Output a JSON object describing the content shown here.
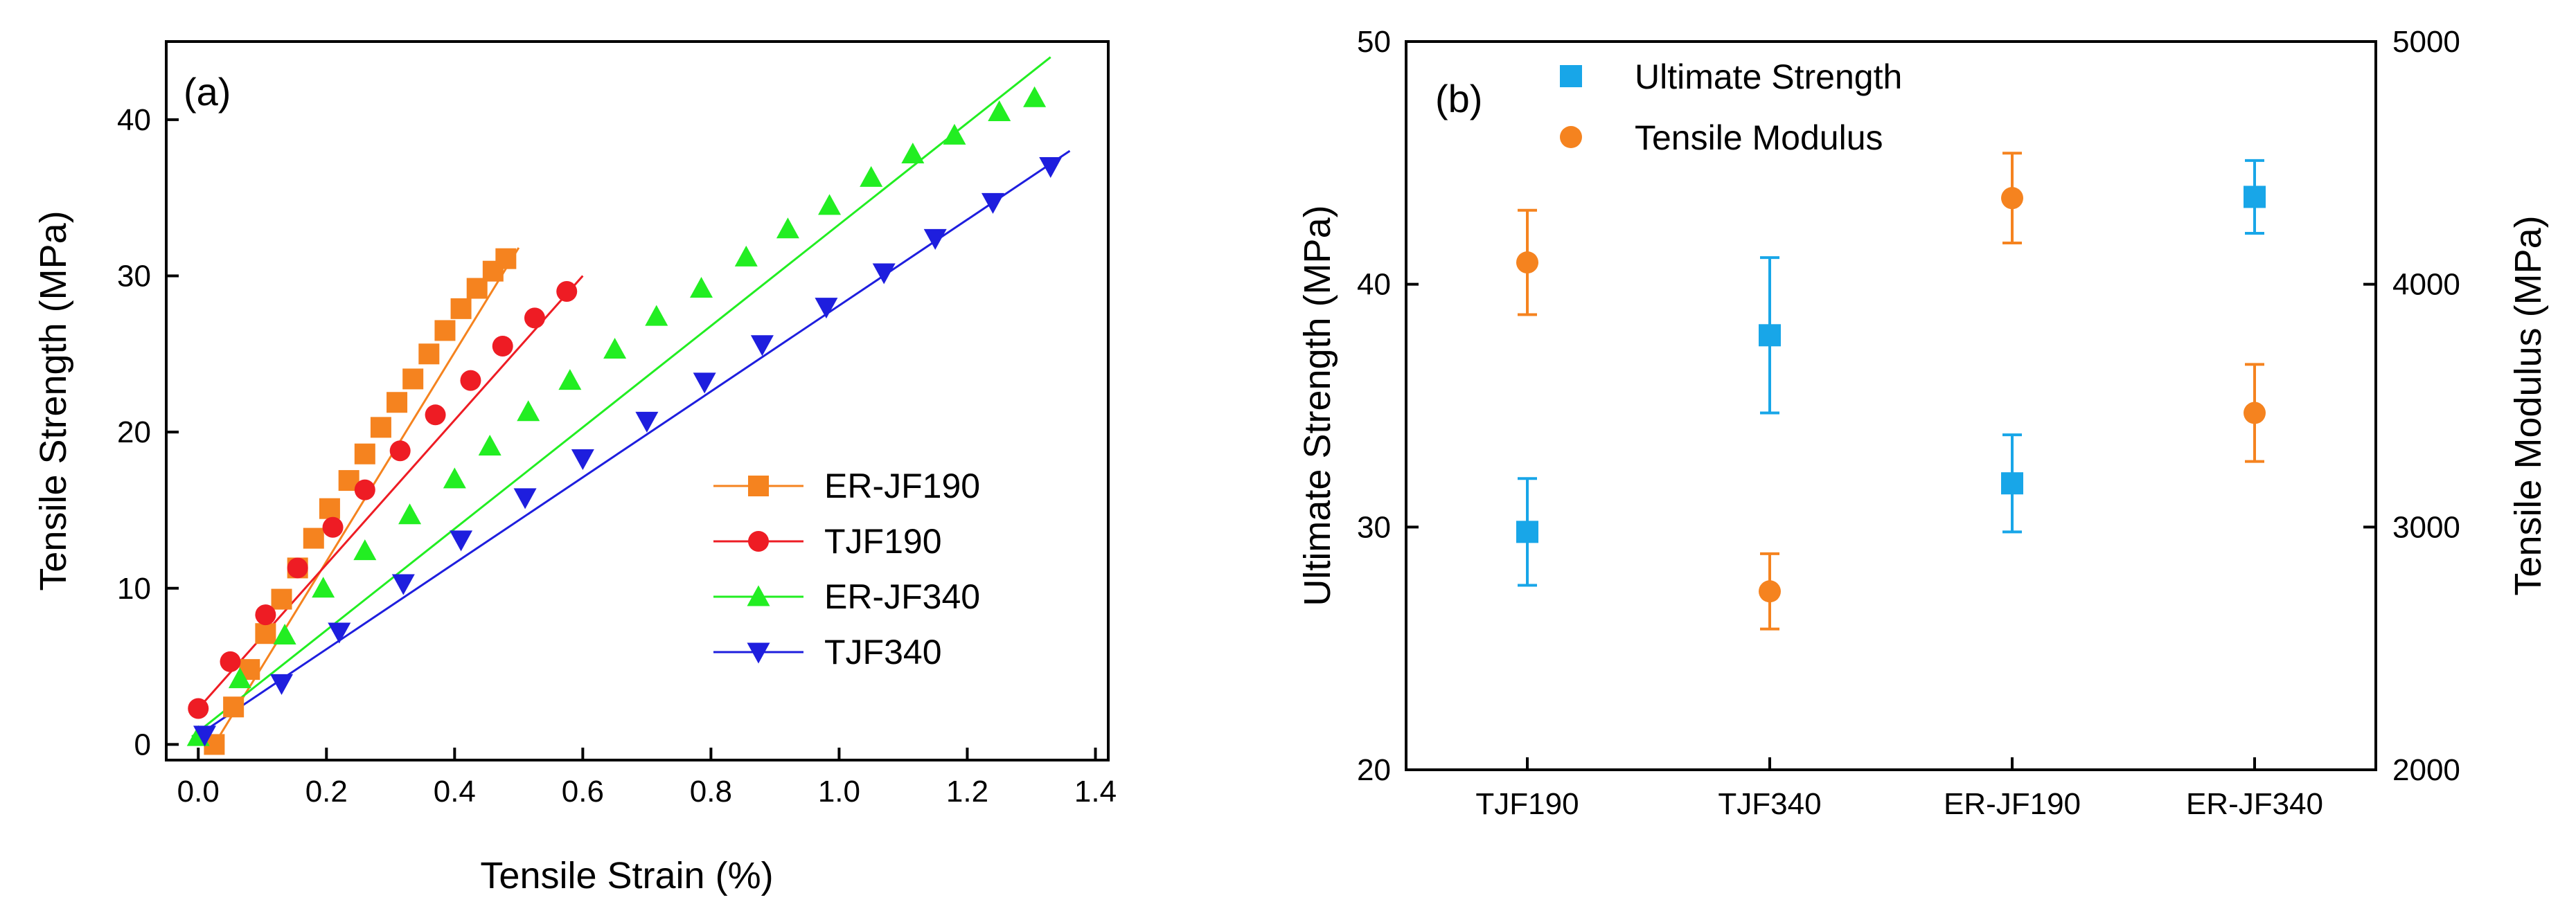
{
  "colors": {
    "orange": "#F5831F",
    "red": "#EE1C24",
    "green": "#22EE22",
    "blue": "#1E1EDE",
    "cyan": "#18A6E8",
    "axis": "#000000"
  },
  "chart_data": [
    {
      "id": "a",
      "type": "line",
      "panel_label": "(a)",
      "xlabel": "Tensile Strain (%)",
      "ylabel": "Tensile Strength (MPa)",
      "xlim": [
        -0.05,
        1.42
      ],
      "ylim": [
        -1,
        45
      ],
      "xticks": [
        0.0,
        0.2,
        0.4,
        0.6,
        0.8,
        1.0,
        1.2,
        1.4
      ],
      "xtick_labels": [
        "0.0",
        "0.2",
        "0.4",
        "0.6",
        "0.8",
        "1.0",
        "1.2",
        "1.4"
      ],
      "yticks": [
        0,
        10,
        20,
        30,
        40
      ],
      "ytick_labels": [
        "0",
        "10",
        "20",
        "30",
        "40"
      ],
      "grid": false,
      "legend_position": "lower-right",
      "series": [
        {
          "name": "ER-JF190",
          "color": "#F5831F",
          "marker": "square",
          "line": [
            [
              0.025,
              0
            ],
            [
              0.5,
              31.8
            ]
          ],
          "x": [
            0.025,
            0.055,
            0.08,
            0.105,
            0.13,
            0.155,
            0.18,
            0.205,
            0.235,
            0.26,
            0.285,
            0.31,
            0.335,
            0.36,
            0.385,
            0.41,
            0.435,
            0.46,
            0.48
          ],
          "y": [
            0,
            2.4,
            4.8,
            7.1,
            9.3,
            11.3,
            13.2,
            15.1,
            16.9,
            18.6,
            20.3,
            21.9,
            23.4,
            25.0,
            26.5,
            27.9,
            29.2,
            30.3,
            31.1
          ]
        },
        {
          "name": "TJF190",
          "color": "#EE1C24",
          "marker": "circle",
          "line": [
            [
              0.0,
              2.3
            ],
            [
              0.6,
              30.0
            ]
          ],
          "x": [
            0.0,
            0.05,
            0.105,
            0.155,
            0.21,
            0.26,
            0.315,
            0.37,
            0.425,
            0.475,
            0.525,
            0.575
          ],
          "y": [
            2.3,
            5.3,
            8.3,
            11.3,
            13.9,
            16.3,
            18.8,
            21.1,
            23.3,
            25.5,
            27.3,
            29.0
          ]
        },
        {
          "name": "ER-JF340",
          "color": "#22EE22",
          "marker": "triangle-up",
          "line": [
            [
              -0.01,
              0.5
            ],
            [
              1.33,
              44
            ]
          ],
          "x": [
            0.0,
            0.065,
            0.135,
            0.195,
            0.26,
            0.33,
            0.4,
            0.455,
            0.515,
            0.58,
            0.65,
            0.715,
            0.785,
            0.855,
            0.92,
            0.985,
            1.05,
            1.115,
            1.18,
            1.25,
            1.305
          ],
          "y": [
            0.5,
            4.2,
            7.0,
            10.0,
            12.4,
            14.7,
            17.0,
            19.1,
            21.3,
            23.3,
            25.3,
            27.4,
            29.2,
            31.2,
            33.0,
            34.5,
            36.3,
            37.8,
            39.0,
            40.5,
            41.4
          ]
        },
        {
          "name": "TJF340",
          "color": "#1E1EDE",
          "marker": "triangle-down",
          "line": [
            [
              0.0,
              0.6
            ],
            [
              1.36,
              38.0
            ]
          ],
          "x": [
            0.01,
            0.13,
            0.22,
            0.32,
            0.41,
            0.51,
            0.6,
            0.7,
            0.79,
            0.88,
            0.98,
            1.07,
            1.15,
            1.24,
            1.33
          ],
          "y": [
            0.6,
            3.9,
            7.2,
            10.3,
            13.1,
            15.8,
            18.3,
            20.7,
            23.2,
            25.6,
            28.0,
            30.2,
            32.4,
            34.7,
            37.0
          ]
        }
      ]
    },
    {
      "id": "b",
      "type": "scatter",
      "panel_label": "(b)",
      "categories": [
        "TJF190",
        "TJF340",
        "ER-JF190",
        "ER-JF340"
      ],
      "ylabel_left": "Ultimate Strength (MPa)",
      "ylabel_right": "Tensile Modulus (MPa)",
      "ylim_left": [
        20,
        50
      ],
      "ylim_right": [
        2000,
        5000
      ],
      "yticks_left": [
        20,
        30,
        40,
        50
      ],
      "ytick_labels_left": [
        "20",
        "30",
        "40",
        "50"
      ],
      "yticks_right": [
        2000,
        3000,
        4000,
        5000
      ],
      "ytick_labels_right": [
        "2000",
        "3000",
        "4000",
        "5000"
      ],
      "grid": false,
      "legend_position": "top-left",
      "series": [
        {
          "name": "Ultimate Strength",
          "axis": "left",
          "color": "#18A6E8",
          "marker": "square",
          "values": [
            29.8,
            37.9,
            31.8,
            43.6
          ],
          "errors": [
            2.2,
            3.2,
            2.0,
            1.5
          ]
        },
        {
          "name": "Tensile Modulus",
          "axis": "right",
          "color": "#F5831F",
          "marker": "circle",
          "values": [
            4090,
            2735,
            4355,
            3470
          ],
          "errors": [
            215,
            155,
            185,
            200
          ]
        }
      ]
    }
  ]
}
